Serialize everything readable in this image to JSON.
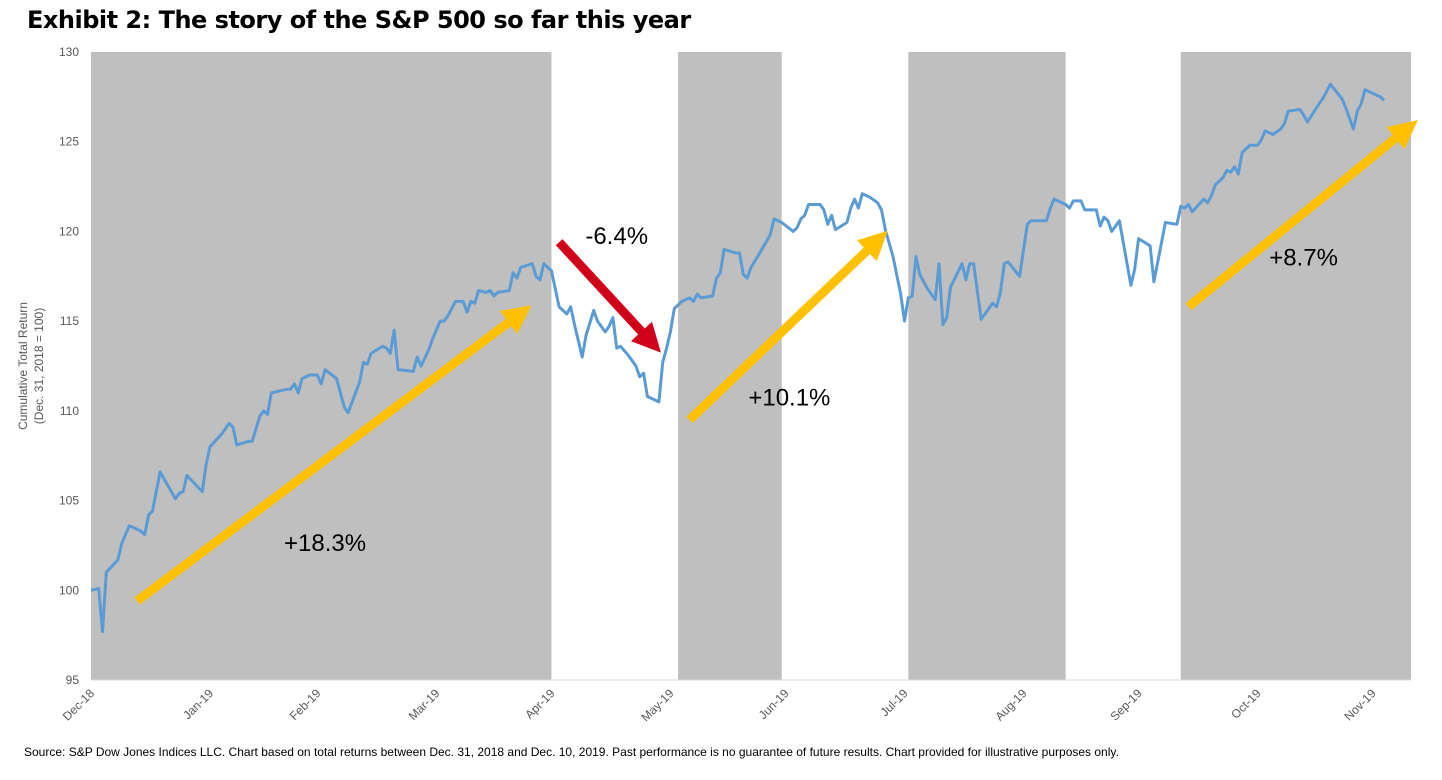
{
  "title": "Exhibit 2: The story of the S&P 500 so far this year",
  "footnote": "Source: S&P Dow Jones Indices LLC.  Chart based on total returns between Dec. 31, 2018 and Dec. 10, 2019.  Past performance is no guarantee of future results.  Chart provided for illustrative purposes only.",
  "colors": {
    "line": "#5B9BD5",
    "band": "#BFBFBF",
    "up_arrow": "#FFC000",
    "down_arrow": "#D0021B"
  },
  "chart_data": {
    "type": "line",
    "title": "Exhibit 2: The story of the S&P 500 so far this year",
    "xlabel": "",
    "ylabel": "Cumulative Total Return",
    "ylabel2": "(Dec. 31, 2018 = 100)",
    "x_unit": "days since Dec 31, 2018",
    "xlim": [
      0,
      344
    ],
    "ylim": [
      95,
      130
    ],
    "yticks": [
      95,
      100,
      105,
      110,
      115,
      120,
      125,
      130
    ],
    "xticks": [
      {
        "x": 0,
        "label": "Dec-18"
      },
      {
        "x": 31,
        "label": "Jan-19"
      },
      {
        "x": 59,
        "label": "Feb-19"
      },
      {
        "x": 90,
        "label": "Mar-19"
      },
      {
        "x": 120,
        "label": "Apr-19"
      },
      {
        "x": 151,
        "label": "May-19"
      },
      {
        "x": 181,
        "label": "Jun-19"
      },
      {
        "x": 212,
        "label": "Jul-19"
      },
      {
        "x": 243,
        "label": "Aug-19"
      },
      {
        "x": 273,
        "label": "Sep-19"
      },
      {
        "x": 304,
        "label": "Oct-19"
      },
      {
        "x": 334,
        "label": "Nov-19"
      }
    ],
    "grid": false,
    "legend": "none",
    "shaded_periods": [
      [
        0,
        120
      ],
      [
        153,
        180
      ],
      [
        213,
        254
      ],
      [
        284,
        344
      ]
    ],
    "series": [
      {
        "name": "S&P 500 Cumulative Total Return",
        "points": [
          [
            0,
            100.0
          ],
          [
            2,
            100.1
          ],
          [
            3,
            97.7
          ],
          [
            4,
            101.0
          ],
          [
            7,
            101.7
          ],
          [
            8,
            102.6
          ],
          [
            10,
            103.6
          ],
          [
            13,
            103.3
          ],
          [
            14,
            103.1
          ],
          [
            15,
            104.2
          ],
          [
            16,
            104.4
          ],
          [
            18,
            106.6
          ],
          [
            22,
            105.1
          ],
          [
            23,
            105.4
          ],
          [
            24,
            105.5
          ],
          [
            25,
            106.4
          ],
          [
            29,
            105.5
          ],
          [
            30,
            107.0
          ],
          [
            31,
            108.0
          ],
          [
            34,
            108.7
          ],
          [
            36,
            109.3
          ],
          [
            37,
            109.1
          ],
          [
            38,
            108.1
          ],
          [
            41,
            108.3
          ],
          [
            42,
            108.3
          ],
          [
            44,
            109.7
          ],
          [
            45,
            110.0
          ],
          [
            46,
            109.8
          ],
          [
            47,
            111.0
          ],
          [
            51,
            111.2
          ],
          [
            52,
            111.2
          ],
          [
            53,
            111.5
          ],
          [
            54,
            111.0
          ],
          [
            55,
            111.8
          ],
          [
            57,
            112.0
          ],
          [
            59,
            112.0
          ],
          [
            60,
            111.5
          ],
          [
            61,
            112.3
          ],
          [
            64,
            111.8
          ],
          [
            66,
            110.2
          ],
          [
            67,
            109.9
          ],
          [
            70,
            111.6
          ],
          [
            71,
            112.7
          ],
          [
            72,
            112.6
          ],
          [
            73,
            113.2
          ],
          [
            76,
            113.6
          ],
          [
            77,
            113.5
          ],
          [
            78,
            113.2
          ],
          [
            79,
            114.5
          ],
          [
            80,
            112.3
          ],
          [
            84,
            112.2
          ],
          [
            85,
            113.0
          ],
          [
            86,
            112.5
          ],
          [
            88,
            113.4
          ],
          [
            89,
            114.0
          ],
          [
            91,
            115.0
          ],
          [
            92,
            115.0
          ],
          [
            93,
            115.3
          ],
          [
            95,
            116.1
          ],
          [
            97,
            116.1
          ],
          [
            98,
            115.5
          ],
          [
            99,
            116.1
          ],
          [
            100,
            116.0
          ],
          [
            101,
            116.7
          ],
          [
            103,
            116.6
          ],
          [
            104,
            116.7
          ],
          [
            105,
            116.4
          ],
          [
            106,
            116.6
          ],
          [
            109,
            116.7
          ],
          [
            110,
            117.7
          ],
          [
            111,
            117.4
          ],
          [
            112,
            118.0
          ],
          [
            115,
            118.2
          ],
          [
            116,
            117.5
          ],
          [
            117,
            117.3
          ],
          [
            118,
            118.2
          ],
          [
            120,
            117.8
          ],
          [
            122,
            115.8
          ],
          [
            124,
            115.4
          ],
          [
            125,
            115.8
          ],
          [
            126,
            114.8
          ],
          [
            128,
            113.0
          ],
          [
            129,
            114.2
          ],
          [
            131,
            115.6
          ],
          [
            132,
            115.0
          ],
          [
            134,
            114.4
          ],
          [
            135,
            114.7
          ],
          [
            136,
            115.2
          ],
          [
            137,
            113.5
          ],
          [
            138,
            113.6
          ],
          [
            140,
            113.1
          ],
          [
            142,
            112.5
          ],
          [
            143,
            111.9
          ],
          [
            144,
            112.1
          ],
          [
            145,
            110.8
          ],
          [
            148,
            110.5
          ],
          [
            149,
            112.7
          ],
          [
            150,
            113.5
          ],
          [
            151,
            114.4
          ],
          [
            152,
            115.7
          ],
          [
            154,
            116.1
          ],
          [
            156,
            116.3
          ],
          [
            157,
            116.1
          ],
          [
            158,
            116.5
          ],
          [
            159,
            116.3
          ],
          [
            162,
            116.4
          ],
          [
            163,
            117.4
          ],
          [
            164,
            117.7
          ],
          [
            165,
            119.0
          ],
          [
            168,
            118.8
          ],
          [
            169,
            118.8
          ],
          [
            170,
            117.6
          ],
          [
            171,
            117.4
          ],
          [
            172,
            118.0
          ],
          [
            174,
            118.7
          ],
          [
            177,
            119.8
          ],
          [
            178,
            120.7
          ],
          [
            180,
            120.5
          ],
          [
            183,
            120.0
          ],
          [
            184,
            120.2
          ],
          [
            185,
            120.7
          ],
          [
            186,
            120.9
          ],
          [
            187,
            121.5
          ],
          [
            190,
            121.5
          ],
          [
            191,
            121.2
          ],
          [
            192,
            120.4
          ],
          [
            193,
            120.9
          ],
          [
            194,
            120.1
          ],
          [
            197,
            120.5
          ],
          [
            198,
            121.3
          ],
          [
            199,
            121.8
          ],
          [
            200,
            121.3
          ],
          [
            201,
            122.1
          ],
          [
            203,
            121.9
          ],
          [
            205,
            121.6
          ],
          [
            206,
            121.2
          ],
          [
            207,
            120.1
          ],
          [
            209,
            118.6
          ],
          [
            211,
            116.5
          ],
          [
            212,
            115.0
          ],
          [
            213,
            116.3
          ],
          [
            214,
            116.4
          ],
          [
            215,
            118.6
          ],
          [
            216,
            117.6
          ],
          [
            218,
            116.8
          ],
          [
            220,
            116.2
          ],
          [
            221,
            118.2
          ],
          [
            222,
            114.8
          ],
          [
            223,
            115.2
          ],
          [
            224,
            116.9
          ],
          [
            227,
            118.2
          ],
          [
            228,
            117.3
          ],
          [
            229,
            118.2
          ],
          [
            230,
            118.2
          ],
          [
            232,
            115.1
          ],
          [
            235,
            116.0
          ],
          [
            236,
            115.8
          ],
          [
            237,
            116.6
          ],
          [
            238,
            118.2
          ],
          [
            239,
            118.3
          ],
          [
            242,
            117.5
          ],
          [
            244,
            120.4
          ],
          [
            245,
            120.6
          ],
          [
            248,
            120.6
          ],
          [
            249,
            120.6
          ],
          [
            250,
            121.3
          ],
          [
            251,
            121.8
          ],
          [
            254,
            121.5
          ],
          [
            255,
            121.3
          ],
          [
            256,
            121.7
          ],
          [
            258,
            121.7
          ],
          [
            259,
            121.2
          ],
          [
            262,
            121.2
          ],
          [
            263,
            120.3
          ],
          [
            264,
            120.8
          ],
          [
            265,
            120.6
          ],
          [
            266,
            120.0
          ],
          [
            268,
            120.6
          ],
          [
            271,
            117.0
          ],
          [
            272,
            117.9
          ],
          [
            273,
            119.6
          ],
          [
            276,
            119.2
          ],
          [
            277,
            117.2
          ],
          [
            279,
            119.4
          ],
          [
            280,
            120.5
          ],
          [
            283,
            120.4
          ],
          [
            284,
            121.4
          ],
          [
            285,
            121.3
          ],
          [
            286,
            121.5
          ],
          [
            287,
            121.1
          ],
          [
            290,
            121.8
          ],
          [
            291,
            121.6
          ],
          [
            292,
            122.0
          ],
          [
            293,
            122.6
          ],
          [
            295,
            123.0
          ],
          [
            296,
            123.4
          ],
          [
            297,
            123.3
          ],
          [
            298,
            123.6
          ],
          [
            299,
            123.2
          ],
          [
            300,
            124.4
          ],
          [
            301,
            124.6
          ],
          [
            302,
            124.8
          ],
          [
            304,
            124.8
          ],
          [
            305,
            125.1
          ],
          [
            306,
            125.6
          ],
          [
            308,
            125.4
          ],
          [
            310,
            125.7
          ],
          [
            311,
            126.0
          ],
          [
            312,
            126.7
          ],
          [
            315,
            126.8
          ],
          [
            316,
            126.5
          ],
          [
            317,
            126.1
          ],
          [
            320,
            127.1
          ],
          [
            321,
            127.4
          ],
          [
            322,
            127.8
          ],
          [
            323,
            128.2
          ],
          [
            326,
            127.4
          ],
          [
            327,
            126.9
          ],
          [
            328,
            126.3
          ],
          [
            329,
            125.7
          ],
          [
            330,
            126.7
          ],
          [
            331,
            127.1
          ],
          [
            332,
            127.9
          ],
          [
            336,
            127.5
          ],
          [
            337,
            127.3
          ]
        ]
      }
    ],
    "annotations": [
      {
        "text": "+18.3%",
        "x": 61,
        "y": 102.2,
        "arrow": {
          "color": "up",
          "from": [
            12,
            99.4
          ],
          "to": [
            113,
            115.6
          ]
        }
      },
      {
        "text": "-6.4%",
        "x": 137,
        "y": 119.3,
        "arrow": {
          "color": "down",
          "from": [
            122,
            119.4
          ],
          "to": [
            147,
            113.6
          ]
        }
      },
      {
        "text": "+10.1%",
        "x": 182,
        "y": 110.3,
        "arrow": {
          "color": "up",
          "from": [
            156,
            109.5
          ],
          "to": [
            206,
            119.7
          ]
        }
      },
      {
        "text": "+8.7%",
        "x": 316,
        "y": 118.1,
        "arrow": {
          "color": "up",
          "from": [
            286,
            115.8
          ],
          "to": [
            344,
            125.9
          ]
        }
      }
    ]
  }
}
